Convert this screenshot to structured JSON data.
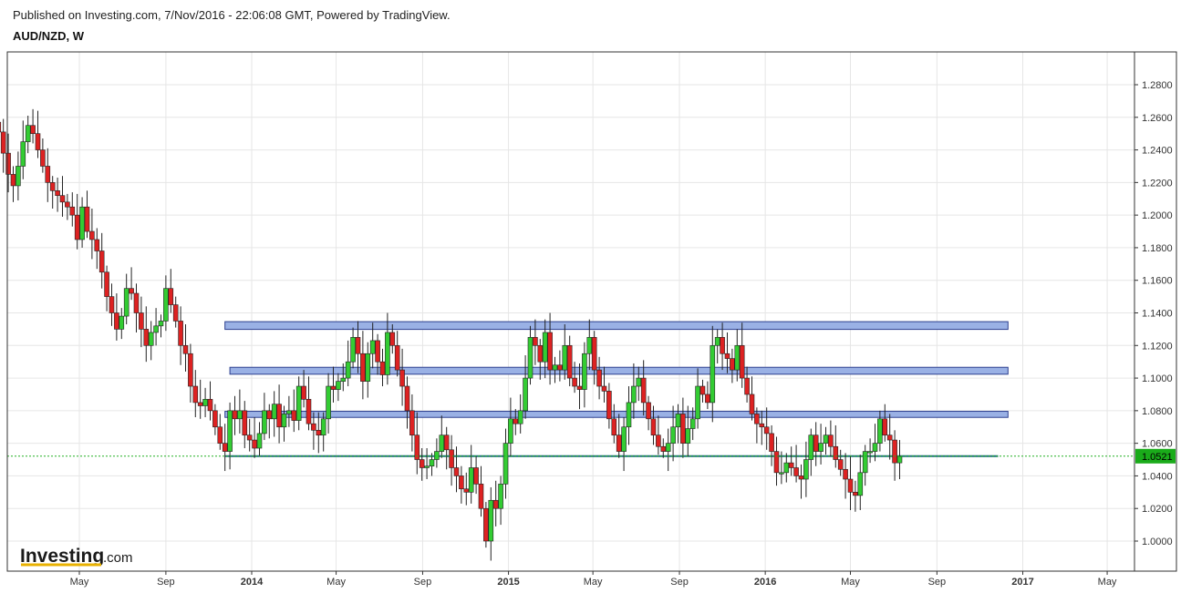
{
  "header": {
    "published": "Published on Investing.com, 7/Nov/2016 - 22:06:08 GMT, Powered by TradingView.",
    "symbol": "AUD/NZD, W"
  },
  "logo": {
    "main": "Investing",
    "suffix": ".com"
  },
  "chart_data": {
    "type": "candlestick",
    "ylim": [
      0.985,
      1.295
    ],
    "y_ticks": [
      "1.0000",
      "1.0200",
      "1.0400",
      "1.0600",
      "1.0800",
      "1.1000",
      "1.1200",
      "1.1400",
      "1.1600",
      "1.1800",
      "1.2000",
      "1.2200",
      "1.2400",
      "1.2600",
      "1.2800"
    ],
    "x_ticks": [
      {
        "label": "May",
        "date": "2013-05-01",
        "bold": false
      },
      {
        "label": "Sep",
        "date": "2013-09-01",
        "bold": false
      },
      {
        "label": "2014",
        "date": "2014-01-01",
        "bold": true
      },
      {
        "label": "May",
        "date": "2014-05-01",
        "bold": false
      },
      {
        "label": "Sep",
        "date": "2014-09-01",
        "bold": false
      },
      {
        "label": "2015",
        "date": "2015-01-01",
        "bold": true
      },
      {
        "label": "May",
        "date": "2015-05-01",
        "bold": false
      },
      {
        "label": "Sep",
        "date": "2015-09-01",
        "bold": false
      },
      {
        "label": "2016",
        "date": "2016-01-01",
        "bold": true
      },
      {
        "label": "May",
        "date": "2016-05-01",
        "bold": false
      },
      {
        "label": "Sep",
        "date": "2016-09-01",
        "bold": false
      },
      {
        "label": "2017",
        "date": "2017-01-01",
        "bold": true
      },
      {
        "label": "May",
        "date": "2017-05-01",
        "bold": false
      }
    ],
    "first_candle_date": "2013-01-06",
    "candle_interval_days": 7,
    "current_price": "1.0521",
    "current_price_value": 1.0521,
    "resistance_zones": [
      {
        "from": "2013-11-24",
        "to": "2016-12-11",
        "low": 1.131,
        "high": 1.1335
      },
      {
        "from": "2013-12-01",
        "to": "2016-12-11",
        "low": 1.1035,
        "high": 1.1055
      },
      {
        "from": "2013-11-24",
        "to": "2016-12-11",
        "low": 1.077,
        "high": 1.0785
      }
    ],
    "support_line": {
      "from": "2013-11-24",
      "to": "2016-11-27",
      "value": 1.0521
    },
    "colors": {
      "up": "#33cc33",
      "down": "#dd2222",
      "zone": "#9ab1e5",
      "zone_border": "#2c3f8f",
      "support": "#1e6e7e",
      "price_line": "#23b023",
      "price_label": "#1aab1a",
      "grid": "#e6e6e6"
    },
    "closes": [
      1.251,
      1.238,
      1.225,
      1.218,
      1.23,
      1.245,
      1.255,
      1.25,
      1.24,
      1.23,
      1.22,
      1.215,
      1.212,
      1.208,
      1.205,
      1.2,
      1.185,
      1.205,
      1.19,
      1.185,
      1.178,
      1.165,
      1.15,
      1.14,
      1.13,
      1.138,
      1.155,
      1.152,
      1.14,
      1.13,
      1.12,
      1.128,
      1.132,
      1.135,
      1.155,
      1.145,
      1.135,
      1.12,
      1.115,
      1.095,
      1.085,
      1.083,
      1.087,
      1.08,
      1.07,
      1.06,
      1.055,
      1.08,
      1.075,
      1.08,
      1.065,
      1.062,
      1.057,
      1.066,
      1.08,
      1.075,
      1.084,
      1.07,
      1.078,
      1.08,
      1.074,
      1.095,
      1.087,
      1.072,
      1.068,
      1.065,
      1.075,
      1.095,
      1.093,
      1.098,
      1.1,
      1.11,
      1.125,
      1.115,
      1.098,
      1.115,
      1.123,
      1.11,
      1.102,
      1.128,
      1.12,
      1.105,
      1.095,
      1.08,
      1.065,
      1.05,
      1.045,
      1.046,
      1.05,
      1.055,
      1.065,
      1.056,
      1.045,
      1.04,
      1.032,
      1.03,
      1.045,
      1.035,
      1.02,
      1.0,
      1.025,
      1.02,
      1.035,
      1.06,
      1.075,
      1.072,
      1.08,
      1.1,
      1.125,
      1.12,
      1.11,
      1.128,
      1.105,
      1.108,
      1.105,
      1.12,
      1.1,
      1.095,
      1.093,
      1.115,
      1.125,
      1.105,
      1.095,
      1.092,
      1.075,
      1.065,
      1.055,
      1.07,
      1.085,
      1.095,
      1.1,
      1.085,
      1.075,
      1.065,
      1.058,
      1.055,
      1.06,
      1.07,
      1.078,
      1.06,
      1.069,
      1.075,
      1.095,
      1.09,
      1.085,
      1.12,
      1.125,
      1.115,
      1.112,
      1.105,
      1.12,
      1.1,
      1.09,
      1.078,
      1.072,
      1.07,
      1.066,
      1.055,
      1.042,
      1.042,
      1.048,
      1.045,
      1.04,
      1.038,
      1.05,
      1.065,
      1.055,
      1.06,
      1.065,
      1.058,
      1.05,
      1.044,
      1.038,
      1.03,
      1.028,
      1.042,
      1.055,
      1.055,
      1.06,
      1.075,
      1.065,
      1.062,
      1.048,
      1.052
    ]
  }
}
